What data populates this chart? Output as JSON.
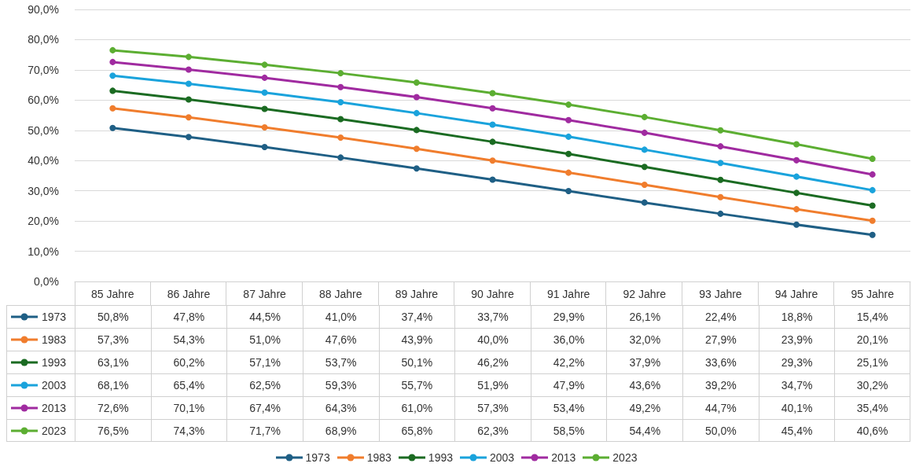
{
  "chart_data": {
    "type": "line",
    "categories": [
      "85 Jahre",
      "86 Jahre",
      "87 Jahre",
      "88 Jahre",
      "89 Jahre",
      "90 Jahre",
      "91 Jahre",
      "92 Jahre",
      "93 Jahre",
      "94 Jahre",
      "95 Jahre"
    ],
    "ylim": [
      0,
      90
    ],
    "yticks": [
      {
        "value": 0,
        "label": "0,0%"
      },
      {
        "value": 10,
        "label": "10,0%"
      },
      {
        "value": 20,
        "label": "20,0%"
      },
      {
        "value": 30,
        "label": "30,0%"
      },
      {
        "value": 40,
        "label": "40,0%"
      },
      {
        "value": 50,
        "label": "50,0%"
      },
      {
        "value": 60,
        "label": "60,0%"
      },
      {
        "value": 70,
        "label": "70,0%"
      },
      {
        "value": 80,
        "label": "80,0%"
      },
      {
        "value": 90,
        "label": "90,0%"
      }
    ],
    "grid": "y",
    "legend": "bottom",
    "marker": "circle",
    "line_style": "solid",
    "series": [
      {
        "name": "1973",
        "color": "#1f5f85",
        "values": [
          50.8,
          47.8,
          44.5,
          41.0,
          37.4,
          33.7,
          29.9,
          26.1,
          22.4,
          18.8,
          15.4
        ],
        "value_labels": [
          "50,8%",
          "47,8%",
          "44,5%",
          "41,0%",
          "37,4%",
          "33,7%",
          "29,9%",
          "26,1%",
          "22,4%",
          "18,8%",
          "15,4%"
        ]
      },
      {
        "name": "1983",
        "color": "#f07d2d",
        "values": [
          57.3,
          54.3,
          51.0,
          47.6,
          43.9,
          40.0,
          36.0,
          32.0,
          27.9,
          23.9,
          20.1
        ],
        "value_labels": [
          "57,3%",
          "54,3%",
          "51,0%",
          "47,6%",
          "43,9%",
          "40,0%",
          "36,0%",
          "32,0%",
          "27,9%",
          "23,9%",
          "20,1%"
        ]
      },
      {
        "name": "1993",
        "color": "#1b6b22",
        "values": [
          63.1,
          60.2,
          57.1,
          53.7,
          50.1,
          46.2,
          42.2,
          37.9,
          33.6,
          29.3,
          25.1
        ],
        "value_labels": [
          "63,1%",
          "60,2%",
          "57,1%",
          "53,7%",
          "50,1%",
          "46,2%",
          "42,2%",
          "37,9%",
          "33,6%",
          "29,3%",
          "25,1%"
        ]
      },
      {
        "name": "2003",
        "color": "#1aa3dc",
        "values": [
          68.1,
          65.4,
          62.5,
          59.3,
          55.7,
          51.9,
          47.9,
          43.6,
          39.2,
          34.7,
          30.2
        ],
        "value_labels": [
          "68,1%",
          "65,4%",
          "62,5%",
          "59,3%",
          "55,7%",
          "51,9%",
          "47,9%",
          "43,6%",
          "39,2%",
          "34,7%",
          "30,2%"
        ]
      },
      {
        "name": "2013",
        "color": "#a02ba0",
        "values": [
          72.6,
          70.1,
          67.4,
          64.3,
          61.0,
          57.3,
          53.4,
          49.2,
          44.7,
          40.1,
          35.4
        ],
        "value_labels": [
          "72,6%",
          "70,1%",
          "67,4%",
          "64,3%",
          "61,0%",
          "57,3%",
          "53,4%",
          "49,2%",
          "44,7%",
          "40,1%",
          "35,4%"
        ]
      },
      {
        "name": "2023",
        "color": "#5cae32",
        "values": [
          76.5,
          74.3,
          71.7,
          68.9,
          65.8,
          62.3,
          58.5,
          54.4,
          50.0,
          45.4,
          40.6
        ],
        "value_labels": [
          "76,5%",
          "74,3%",
          "71,7%",
          "68,9%",
          "65,8%",
          "62,3%",
          "58,5%",
          "54,4%",
          "50,0%",
          "45,4%",
          "40,6%"
        ]
      }
    ]
  }
}
